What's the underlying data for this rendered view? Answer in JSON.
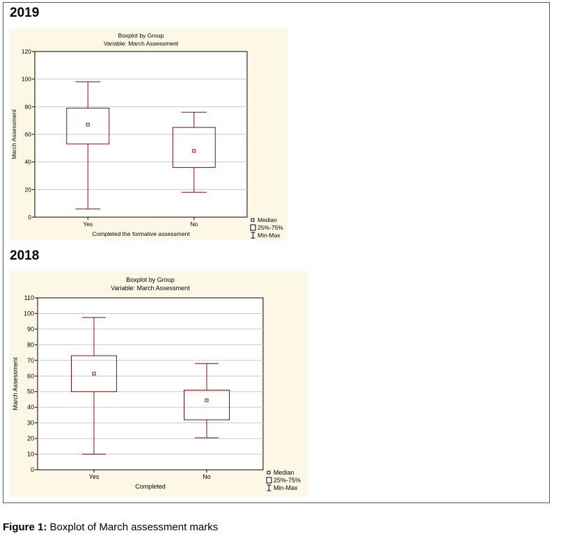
{
  "figure": {
    "caption_label": "Figure 1:",
    "caption_text": " Boxplot of March assessment marks"
  },
  "chart_data": [
    {
      "type": "boxplot",
      "heading": "2019",
      "title": "Boxplot by Group",
      "subtitle": "Variable: March Assessment",
      "xlabel": "Completed the formative assessment",
      "ylabel": "March Assessment",
      "ylim": [
        0,
        120
      ],
      "yticks": [
        0,
        20,
        40,
        60,
        80,
        100,
        120
      ],
      "categories": [
        "Yes",
        "No"
      ],
      "boxes": [
        {
          "category": "Yes",
          "min": 6,
          "q1": 53,
          "median": 67,
          "q3": 79,
          "max": 98
        },
        {
          "category": "No",
          "min": 18,
          "q1": 36,
          "median": 48,
          "q3": 65,
          "max": 76
        }
      ],
      "legend": [
        "Median",
        "25%-75%",
        "Min-Max"
      ],
      "legend_placement": "bottom-right",
      "grid": true,
      "colors": {
        "box": "#7b1010",
        "background": "#fdf8e6",
        "grid": "#c8c8c8"
      }
    },
    {
      "type": "boxplot",
      "heading": "2018",
      "title": "Boxplot by Group",
      "subtitle": "Variable: March Assessment",
      "xlabel": "Completed",
      "ylabel": "March Assessment",
      "ylim": [
        0,
        110
      ],
      "yticks": [
        0,
        10,
        20,
        30,
        40,
        50,
        60,
        70,
        80,
        90,
        100,
        110
      ],
      "categories": [
        "Yes",
        "No"
      ],
      "boxes": [
        {
          "category": "Yes",
          "min": 10,
          "q1": 50,
          "median": 61.5,
          "q3": 73,
          "max": 97.5
        },
        {
          "category": "No",
          "min": 20.5,
          "q1": 32,
          "median": 44.5,
          "q3": 51,
          "max": 68
        }
      ],
      "legend": [
        "Median",
        "25%-75%",
        "Min-Max"
      ],
      "legend_placement": "bottom-right",
      "grid": true,
      "colors": {
        "box": "#7b1010",
        "background": "#fdf8e6",
        "grid": "#c8c8c8"
      }
    }
  ]
}
